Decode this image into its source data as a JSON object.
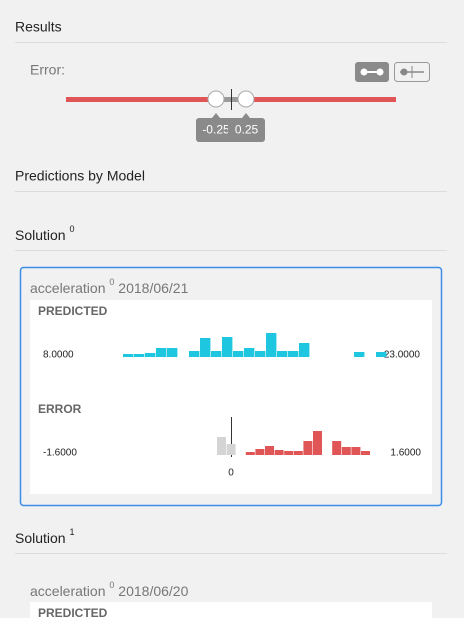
{
  "results": {
    "title": "Results",
    "error_label": "Error:",
    "slider": {
      "low": -0.25,
      "high": 0.25
    }
  },
  "predictions": {
    "title": "Predictions by Model"
  },
  "solutions": [
    {
      "title": "Solution",
      "index": "0",
      "card": {
        "variable": "acceleration",
        "variable_index": "0",
        "date": "2018/06/21",
        "predicted": {
          "label": "PREDICTED",
          "min": "8.0000",
          "max": "23.0000",
          "color": "#1ec6e0",
          "values": [
            3,
            3,
            4,
            9,
            9,
            0,
            6,
            19,
            6,
            20,
            6,
            9,
            6,
            24,
            6,
            6,
            14,
            0,
            0,
            0,
            0,
            5,
            0,
            5
          ]
        },
        "error": {
          "label": "ERROR",
          "min": "-1.6000",
          "max": "1.6000",
          "zero": "0",
          "values": [
            18,
            11,
            0,
            3,
            6,
            9,
            5,
            4,
            4,
            14,
            24,
            0,
            14,
            8,
            8,
            4
          ],
          "colors": [
            "#d4d4d4",
            "#d4d4d4",
            "#e05555",
            "#e05555",
            "#e05555",
            "#e05555",
            "#e05555",
            "#e05555",
            "#e05555",
            "#e05555",
            "#e05555",
            "#e05555",
            "#e05555",
            "#e05555",
            "#e05555",
            "#e05555"
          ]
        }
      }
    },
    {
      "title": "Solution",
      "index": "1",
      "card": {
        "variable": "acceleration",
        "variable_index": "0",
        "date": "2018/06/20",
        "predicted": {
          "label": "PREDICTED"
        }
      }
    }
  ]
}
